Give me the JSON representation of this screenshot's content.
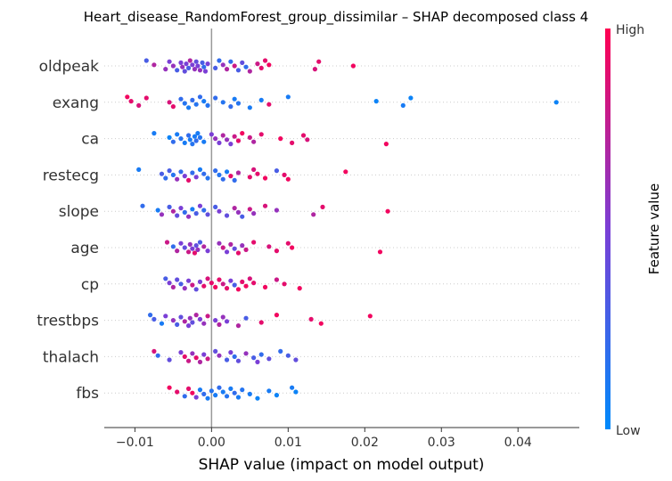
{
  "chart_data": {
    "type": "scatter",
    "title": "Heart_disease_RandomForest_group_dissimilar – SHAP decomposed class 4",
    "xlabel": "SHAP value (impact on model output)",
    "xlim": [
      -0.014,
      0.048
    ],
    "xticks": [
      -0.01,
      0.0,
      0.01,
      0.02,
      0.03,
      0.04
    ],
    "xtick_labels": [
      "−0.01",
      "0.00",
      "0.01",
      "0.02",
      "0.03",
      "0.04"
    ],
    "colorbar": {
      "label": "Feature value",
      "high_label": "High",
      "low_label": "Low",
      "low_color": "#008afb",
      "high_color": "#ff0052"
    },
    "features": [
      {
        "name": "oldpeak",
        "points": [
          [
            -0.0085,
            0.3
          ],
          [
            -0.0075,
            0.7
          ],
          [
            -0.006,
            0.6
          ],
          [
            -0.0055,
            0.5
          ],
          [
            -0.005,
            0.6
          ],
          [
            -0.0045,
            0.3
          ],
          [
            -0.004,
            0.5
          ],
          [
            -0.0038,
            0.6
          ],
          [
            -0.0035,
            0.4
          ],
          [
            -0.0033,
            0.5
          ],
          [
            -0.003,
            0.3
          ],
          [
            -0.0028,
            0.7
          ],
          [
            -0.0025,
            0.5
          ],
          [
            -0.0022,
            0.6
          ],
          [
            -0.002,
            0.4
          ],
          [
            -0.0018,
            0.5
          ],
          [
            -0.0015,
            0.6
          ],
          [
            -0.0012,
            0.3
          ],
          [
            -0.001,
            0.2
          ],
          [
            -0.0008,
            0.5
          ],
          [
            -0.0005,
            0.5
          ],
          [
            0.0005,
            0.3
          ],
          [
            0.001,
            0.2
          ],
          [
            0.0015,
            0.6
          ],
          [
            0.002,
            0.7
          ],
          [
            0.0025,
            0.2
          ],
          [
            0.003,
            0.8
          ],
          [
            0.0035,
            0.3
          ],
          [
            0.004,
            0.4
          ],
          [
            0.0045,
            0.2
          ],
          [
            0.005,
            0.7
          ],
          [
            0.006,
            0.8
          ],
          [
            0.0065,
            0.9
          ],
          [
            0.007,
            0.9
          ],
          [
            0.0075,
            0.95
          ],
          [
            0.0135,
            0.85
          ],
          [
            0.014,
            0.9
          ],
          [
            0.0185,
            0.95
          ]
        ]
      },
      {
        "name": "exang",
        "points": [
          [
            -0.011,
            0.95
          ],
          [
            -0.0105,
            0.9
          ],
          [
            -0.0095,
            0.85
          ],
          [
            -0.0085,
            0.9
          ],
          [
            -0.0055,
            0.85
          ],
          [
            -0.005,
            0.9
          ],
          [
            -0.004,
            0.2
          ],
          [
            -0.0035,
            0.15
          ],
          [
            -0.003,
            0.1
          ],
          [
            -0.0025,
            0.2
          ],
          [
            -0.002,
            0.15
          ],
          [
            -0.0015,
            0.2
          ],
          [
            -0.001,
            0.1
          ],
          [
            -0.0005,
            0.15
          ],
          [
            0.0005,
            0.2
          ],
          [
            0.0015,
            0.15
          ],
          [
            0.0025,
            0.2
          ],
          [
            0.003,
            0.1
          ],
          [
            0.0035,
            0.15
          ],
          [
            0.005,
            0.1
          ],
          [
            0.0065,
            0.1
          ],
          [
            0.0075,
            0.9
          ],
          [
            0.01,
            0.1
          ],
          [
            0.0215,
            0.05
          ],
          [
            0.025,
            0.1
          ],
          [
            0.026,
            0.05
          ],
          [
            0.045,
            0.05
          ]
        ]
      },
      {
        "name": "ca",
        "points": [
          [
            -0.0075,
            0.1
          ],
          [
            -0.0055,
            0.05
          ],
          [
            -0.005,
            0.2
          ],
          [
            -0.0045,
            0.1
          ],
          [
            -0.004,
            0.15
          ],
          [
            -0.0035,
            0.1
          ],
          [
            -0.003,
            0.2
          ],
          [
            -0.0028,
            0.1
          ],
          [
            -0.0025,
            0.15
          ],
          [
            -0.0022,
            0.1
          ],
          [
            -0.002,
            0.2
          ],
          [
            -0.0018,
            0.1
          ],
          [
            -0.0015,
            0.15
          ],
          [
            -0.001,
            0.1
          ],
          [
            0.0,
            0.5
          ],
          [
            0.0005,
            0.6
          ],
          [
            0.001,
            0.5
          ],
          [
            0.0015,
            0.7
          ],
          [
            0.002,
            0.6
          ],
          [
            0.0025,
            0.5
          ],
          [
            0.003,
            0.8
          ],
          [
            0.0035,
            0.9
          ],
          [
            0.004,
            0.95
          ],
          [
            0.005,
            0.8
          ],
          [
            0.0055,
            0.7
          ],
          [
            0.0065,
            0.9
          ],
          [
            0.009,
            0.95
          ],
          [
            0.0105,
            0.9
          ],
          [
            0.012,
            0.9
          ],
          [
            0.0125,
            0.85
          ],
          [
            0.0228,
            0.95
          ]
        ]
      },
      {
        "name": "restecg",
        "points": [
          [
            -0.0095,
            0.1
          ],
          [
            -0.0065,
            0.3
          ],
          [
            -0.006,
            0.2
          ],
          [
            -0.0055,
            0.3
          ],
          [
            -0.005,
            0.15
          ],
          [
            -0.0045,
            0.6
          ],
          [
            -0.004,
            0.2
          ],
          [
            -0.0035,
            0.5
          ],
          [
            -0.003,
            0.9
          ],
          [
            -0.0025,
            0.2
          ],
          [
            -0.002,
            0.5
          ],
          [
            -0.0015,
            0.1
          ],
          [
            -0.001,
            0.2
          ],
          [
            -0.0005,
            0.15
          ],
          [
            0.0005,
            0.2
          ],
          [
            0.001,
            0.15
          ],
          [
            0.0015,
            0.2
          ],
          [
            0.002,
            0.1
          ],
          [
            0.0025,
            0.9
          ],
          [
            0.003,
            0.2
          ],
          [
            0.0035,
            0.7
          ],
          [
            0.005,
            0.9
          ],
          [
            0.0055,
            0.85
          ],
          [
            0.006,
            0.9
          ],
          [
            0.007,
            0.95
          ],
          [
            0.0085,
            0.3
          ],
          [
            0.0095,
            0.9
          ],
          [
            0.01,
            0.95
          ],
          [
            0.0175,
            0.95
          ]
        ]
      },
      {
        "name": "slope",
        "points": [
          [
            -0.009,
            0.2
          ],
          [
            -0.007,
            0.1
          ],
          [
            -0.0065,
            0.6
          ],
          [
            -0.0055,
            0.3
          ],
          [
            -0.005,
            0.7
          ],
          [
            -0.0045,
            0.4
          ],
          [
            -0.004,
            0.5
          ],
          [
            -0.0035,
            0.2
          ],
          [
            -0.003,
            0.6
          ],
          [
            -0.0025,
            0.1
          ],
          [
            -0.002,
            0.3
          ],
          [
            -0.0015,
            0.5
          ],
          [
            -0.001,
            0.2
          ],
          [
            -0.0005,
            0.4
          ],
          [
            0.0005,
            0.3
          ],
          [
            0.001,
            0.5
          ],
          [
            0.002,
            0.4
          ],
          [
            0.003,
            0.7
          ],
          [
            0.0035,
            0.6
          ],
          [
            0.004,
            0.3
          ],
          [
            0.005,
            0.8
          ],
          [
            0.0055,
            0.6
          ],
          [
            0.007,
            0.85
          ],
          [
            0.0085,
            0.6
          ],
          [
            0.0133,
            0.7
          ],
          [
            0.0145,
            0.9
          ],
          [
            0.023,
            0.95
          ]
        ]
      },
      {
        "name": "age",
        "points": [
          [
            -0.0058,
            0.8
          ],
          [
            -0.005,
            0.2
          ],
          [
            -0.0045,
            0.7
          ],
          [
            -0.004,
            0.5
          ],
          [
            -0.0035,
            0.4
          ],
          [
            -0.003,
            0.8
          ],
          [
            -0.0028,
            0.6
          ],
          [
            -0.0025,
            0.5
          ],
          [
            -0.0022,
            0.9
          ],
          [
            -0.002,
            0.4
          ],
          [
            -0.0018,
            0.6
          ],
          [
            -0.0015,
            0.3
          ],
          [
            -0.001,
            0.7
          ],
          [
            -0.0005,
            0.5
          ],
          [
            0.001,
            0.6
          ],
          [
            0.0015,
            0.8
          ],
          [
            0.002,
            0.5
          ],
          [
            0.0025,
            0.7
          ],
          [
            0.003,
            0.4
          ],
          [
            0.0035,
            0.9
          ],
          [
            0.004,
            0.6
          ],
          [
            0.0045,
            0.8
          ],
          [
            0.0055,
            0.9
          ],
          [
            0.0075,
            0.85
          ],
          [
            0.0085,
            0.9
          ],
          [
            0.01,
            0.9
          ],
          [
            0.0105,
            0.95
          ],
          [
            0.022,
            0.95
          ]
        ]
      },
      {
        "name": "cp",
        "points": [
          [
            -0.006,
            0.3
          ],
          [
            -0.0055,
            0.5
          ],
          [
            -0.005,
            0.7
          ],
          [
            -0.0045,
            0.4
          ],
          [
            -0.004,
            0.3
          ],
          [
            -0.0035,
            0.6
          ],
          [
            -0.003,
            0.5
          ],
          [
            -0.0025,
            0.8
          ],
          [
            -0.002,
            0.4
          ],
          [
            -0.0015,
            0.5
          ],
          [
            -0.001,
            0.9
          ],
          [
            -0.0005,
            0.85
          ],
          [
            0.0,
            0.9
          ],
          [
            0.0005,
            0.95
          ],
          [
            0.001,
            0.9
          ],
          [
            0.0015,
            0.8
          ],
          [
            0.002,
            0.9
          ],
          [
            0.0025,
            0.5
          ],
          [
            0.003,
            0.3
          ],
          [
            0.0035,
            0.95
          ],
          [
            0.004,
            0.9
          ],
          [
            0.0045,
            0.95
          ],
          [
            0.005,
            0.85
          ],
          [
            0.0055,
            0.9
          ],
          [
            0.007,
            0.95
          ],
          [
            0.0085,
            0.8
          ],
          [
            0.0095,
            0.9
          ],
          [
            0.0115,
            0.95
          ]
        ]
      },
      {
        "name": "trestbps",
        "points": [
          [
            -0.008,
            0.2
          ],
          [
            -0.0075,
            0.3
          ],
          [
            -0.0065,
            0.1
          ],
          [
            -0.006,
            0.5
          ],
          [
            -0.005,
            0.6
          ],
          [
            -0.0045,
            0.3
          ],
          [
            -0.004,
            0.4
          ],
          [
            -0.0035,
            0.7
          ],
          [
            -0.003,
            0.5
          ],
          [
            -0.0028,
            0.6
          ],
          [
            -0.0025,
            0.4
          ],
          [
            -0.002,
            0.7
          ],
          [
            -0.0015,
            0.5
          ],
          [
            -0.001,
            0.6
          ],
          [
            -0.0005,
            0.8
          ],
          [
            0.0005,
            0.5
          ],
          [
            0.001,
            0.7
          ],
          [
            0.0015,
            0.6
          ],
          [
            0.002,
            0.5
          ],
          [
            0.0035,
            0.7
          ],
          [
            0.0045,
            0.3
          ],
          [
            0.0065,
            0.9
          ],
          [
            0.0085,
            0.95
          ],
          [
            0.013,
            0.9
          ],
          [
            0.0143,
            0.95
          ],
          [
            0.0207,
            0.95
          ]
        ]
      },
      {
        "name": "thalach",
        "points": [
          [
            -0.0075,
            0.85
          ],
          [
            -0.007,
            0.2
          ],
          [
            -0.0055,
            0.4
          ],
          [
            -0.004,
            0.5
          ],
          [
            -0.0035,
            0.9
          ],
          [
            -0.003,
            0.8
          ],
          [
            -0.0025,
            0.6
          ],
          [
            -0.002,
            0.9
          ],
          [
            -0.0015,
            0.7
          ],
          [
            -0.001,
            0.5
          ],
          [
            -0.0005,
            0.8
          ],
          [
            0.0005,
            0.4
          ],
          [
            0.001,
            0.6
          ],
          [
            0.002,
            0.3
          ],
          [
            0.0025,
            0.5
          ],
          [
            0.003,
            0.2
          ],
          [
            0.0035,
            0.4
          ],
          [
            0.0045,
            0.6
          ],
          [
            0.0055,
            0.3
          ],
          [
            0.006,
            0.5
          ],
          [
            0.0065,
            0.2
          ],
          [
            0.0075,
            0.4
          ],
          [
            0.009,
            0.2
          ],
          [
            0.01,
            0.3
          ],
          [
            0.011,
            0.4
          ]
        ]
      },
      {
        "name": "fbs",
        "points": [
          [
            -0.0055,
            0.95
          ],
          [
            -0.0045,
            0.9
          ],
          [
            -0.0035,
            0.2
          ],
          [
            -0.003,
            0.9
          ],
          [
            -0.0025,
            0.95
          ],
          [
            -0.002,
            0.5
          ],
          [
            -0.0015,
            0.1
          ],
          [
            -0.001,
            0.2
          ],
          [
            -0.0005,
            0.1
          ],
          [
            0.0,
            0.15
          ],
          [
            0.0005,
            0.1
          ],
          [
            0.001,
            0.2
          ],
          [
            0.0015,
            0.1
          ],
          [
            0.002,
            0.15
          ],
          [
            0.0025,
            0.1
          ],
          [
            0.003,
            0.2
          ],
          [
            0.0035,
            0.1
          ],
          [
            0.004,
            0.15
          ],
          [
            0.005,
            0.1
          ],
          [
            0.006,
            0.05
          ],
          [
            0.0075,
            0.1
          ],
          [
            0.0085,
            0.05
          ],
          [
            0.0105,
            0.1
          ],
          [
            0.011,
            0.05
          ]
        ]
      }
    ]
  }
}
